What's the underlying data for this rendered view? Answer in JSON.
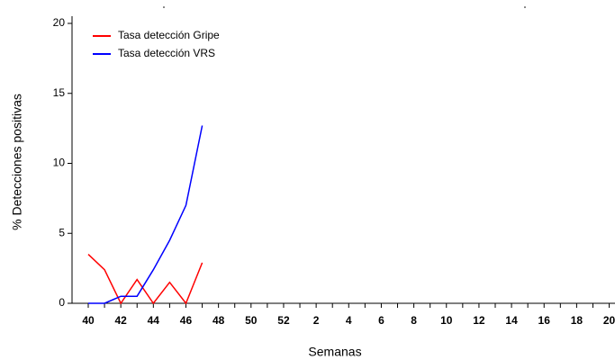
{
  "chart_data": {
    "type": "line",
    "y_label": "% Detecciones positivas",
    "x_label": "Semanas",
    "categories": [
      "40",
      null,
      "42",
      null,
      "44",
      null,
      "46",
      null,
      "48",
      null,
      "50",
      null,
      "52",
      null,
      "2",
      null,
      "4",
      null,
      "6",
      null,
      "8",
      null,
      "10",
      null,
      "12",
      null,
      "14",
      null,
      "16",
      null,
      "18",
      null,
      "20"
    ],
    "series": [
      {
        "name": "Tasa detección Gripe",
        "color": "#ff0000",
        "values": [
          3.5,
          2.4,
          0,
          1.7,
          0,
          1.5,
          0,
          2.9,
          null,
          null,
          null,
          null,
          null,
          null,
          null,
          null,
          null,
          null,
          null,
          null,
          null,
          null,
          null,
          null,
          null,
          null,
          null,
          null,
          null,
          null,
          null,
          null,
          null
        ]
      },
      {
        "name": "Tasa detección VRS",
        "color": "#0000ff",
        "values": [
          0,
          0,
          0.5,
          0.5,
          2.4,
          4.5,
          7.0,
          12.7,
          null,
          null,
          null,
          null,
          null,
          null,
          null,
          null,
          null,
          null,
          null,
          null,
          null,
          null,
          null,
          null,
          null,
          null,
          null,
          null,
          null,
          null,
          null,
          null,
          null
        ]
      }
    ],
    "ylim": [
      0,
      20
    ],
    "yticks": [
      0,
      5,
      10,
      15,
      20
    ],
    "legend": "upper left"
  }
}
